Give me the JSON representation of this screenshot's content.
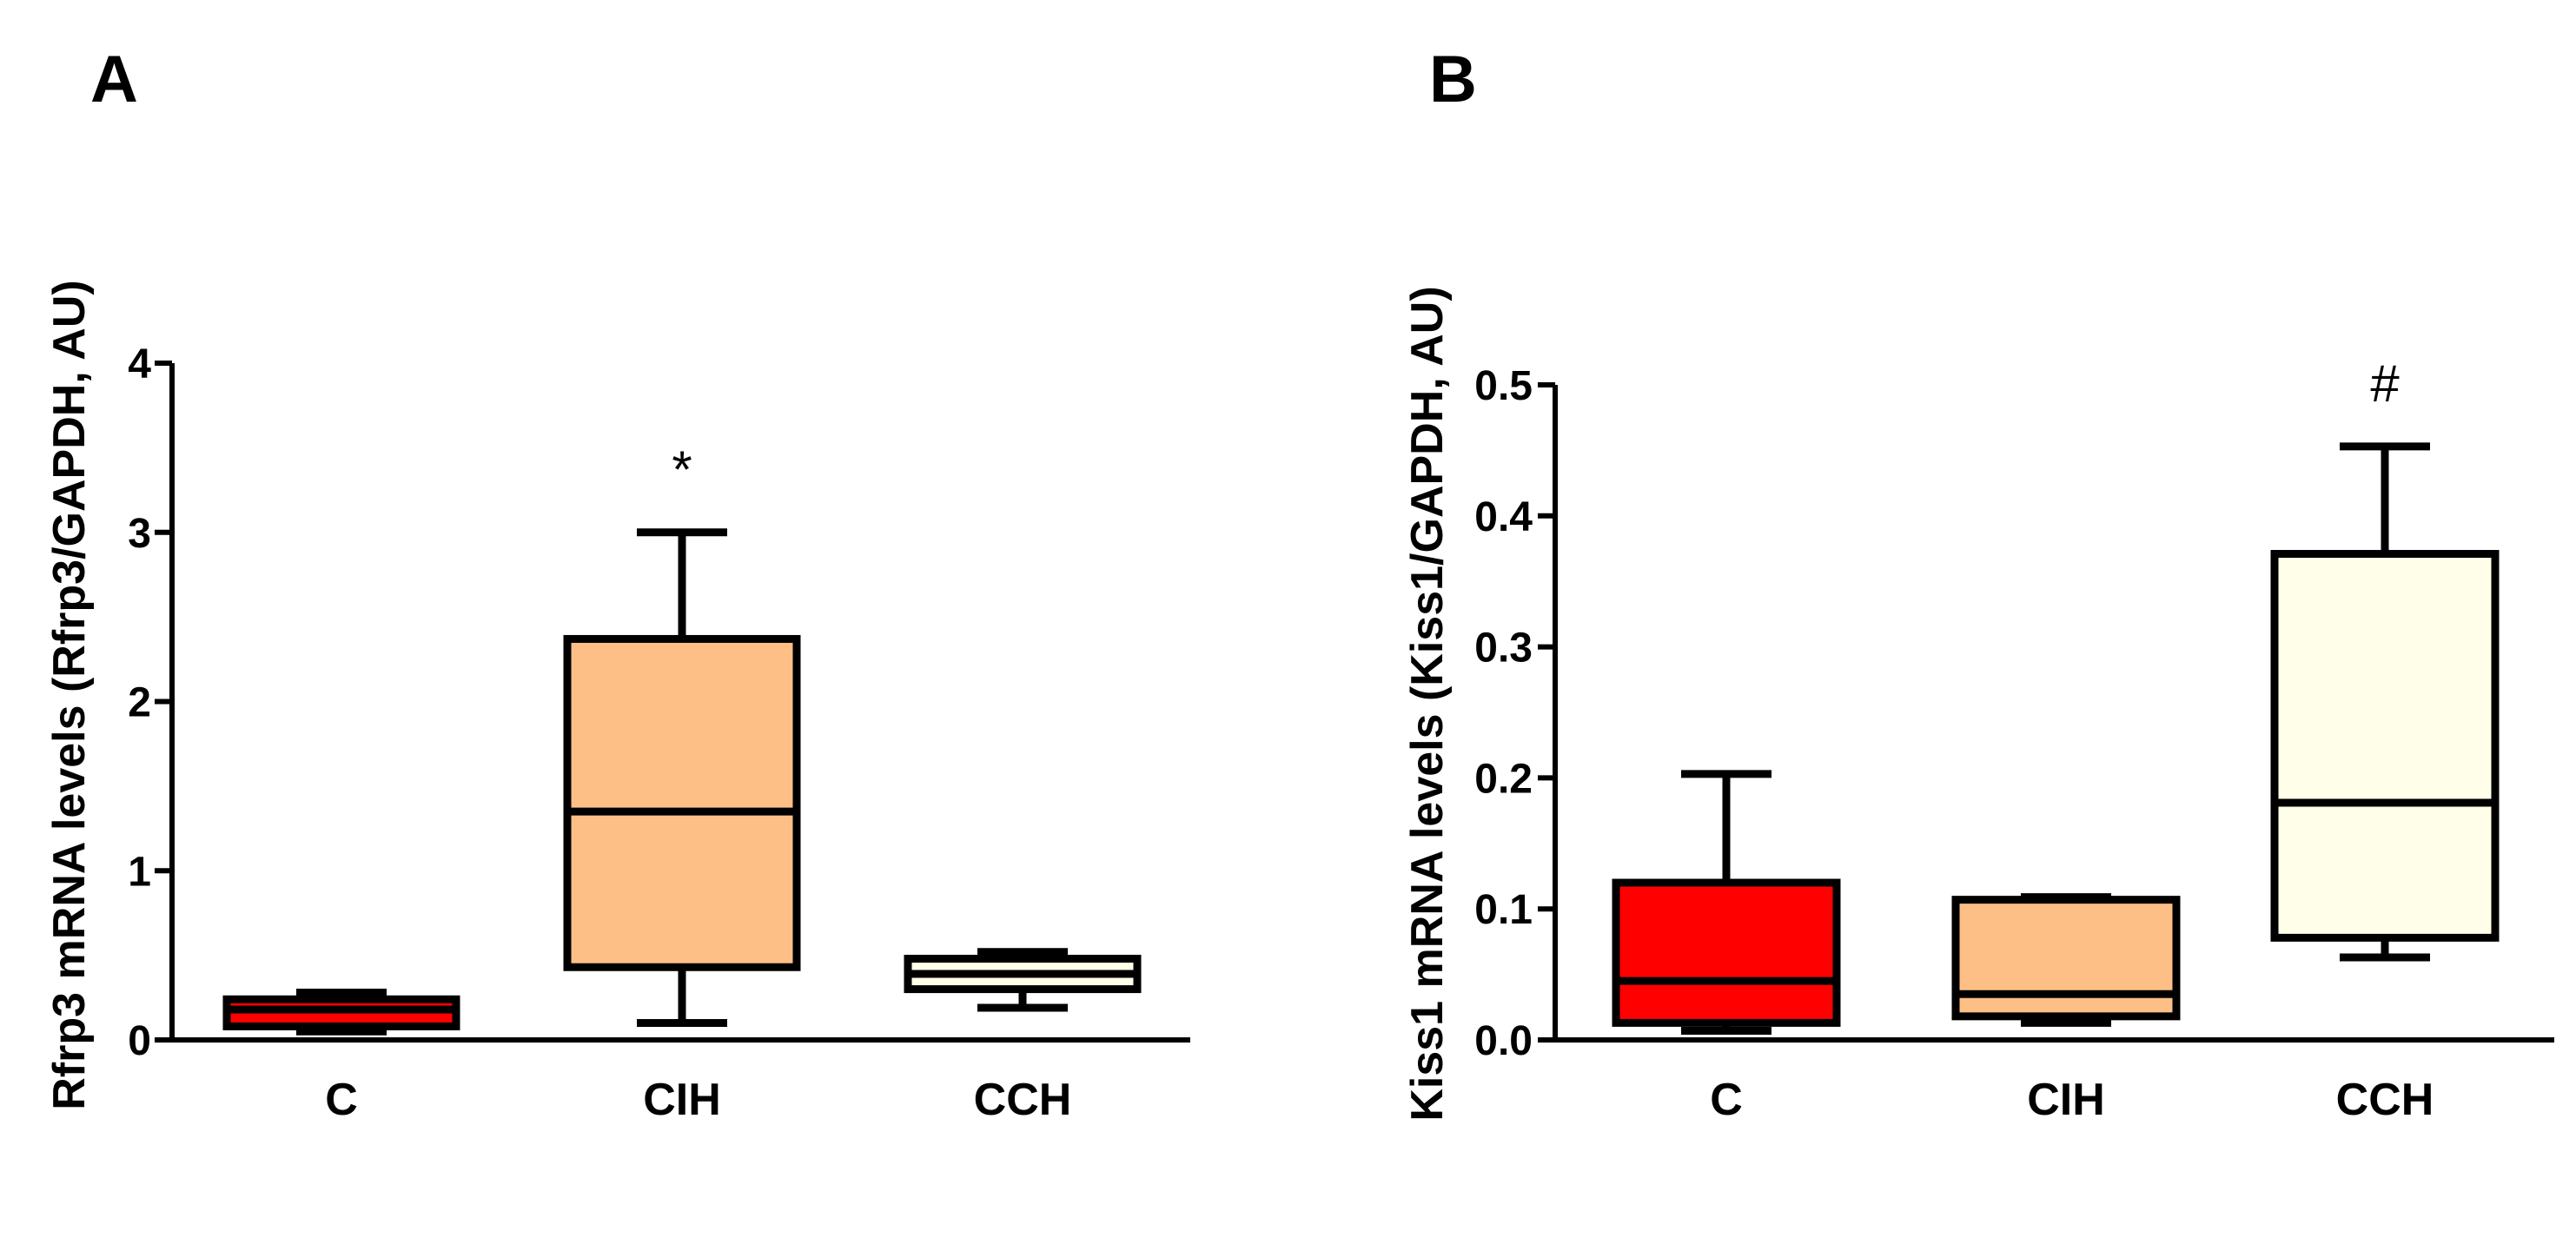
{
  "chart_data": [
    {
      "panel": "A",
      "type": "box",
      "ylabel": "Rfrp3 mRNA levels (Rfrp3/GAPDH,  AU)",
      "xlabel": "",
      "ylim": [
        0,
        4
      ],
      "yticks": [
        "0",
        "1",
        "2",
        "3",
        "4"
      ],
      "ytick_values": [
        0,
        1,
        2,
        3,
        4
      ],
      "categories": [
        "C",
        "CIH",
        "CCH"
      ],
      "boxes": [
        {
          "category": "C",
          "min": 0.05,
          "q1": 0.08,
          "median": 0.18,
          "q3": 0.24,
          "max": 0.28,
          "color": "#ff0000",
          "annotation": ""
        },
        {
          "category": "CIH",
          "min": 0.1,
          "q1": 0.43,
          "median": 1.35,
          "q3": 2.37,
          "max": 3.0,
          "color": "#fdbf86",
          "annotation": "*"
        },
        {
          "category": "CCH",
          "min": 0.19,
          "q1": 0.3,
          "median": 0.39,
          "q3": 0.48,
          "max": 0.52,
          "color": "#fffee8",
          "annotation": ""
        }
      ]
    },
    {
      "panel": "B",
      "type": "box",
      "ylabel": "Kiss1 mRNA levels (Kiss1/GAPDH,  AU)",
      "xlabel": "",
      "ylim": [
        0,
        0.5
      ],
      "yticks": [
        "0.0",
        "0.1",
        "0.2",
        "0.3",
        "0.4",
        "0.5"
      ],
      "ytick_values": [
        0,
        0.1,
        0.2,
        0.3,
        0.4,
        0.5
      ],
      "categories": [
        "C",
        "CIH",
        "CCH"
      ],
      "boxes": [
        {
          "category": "C",
          "min": 0.007,
          "q1": 0.013,
          "median": 0.045,
          "q3": 0.12,
          "max": 0.203,
          "color": "#ff0000",
          "annotation": ""
        },
        {
          "category": "CIH",
          "min": 0.013,
          "q1": 0.018,
          "median": 0.035,
          "q3": 0.107,
          "max": 0.109,
          "color": "#fdbf86",
          "annotation": ""
        },
        {
          "category": "CCH",
          "min": 0.063,
          "q1": 0.078,
          "median": 0.181,
          "q3": 0.371,
          "max": 0.453,
          "color": "#fffee8",
          "annotation": "#"
        }
      ]
    }
  ]
}
